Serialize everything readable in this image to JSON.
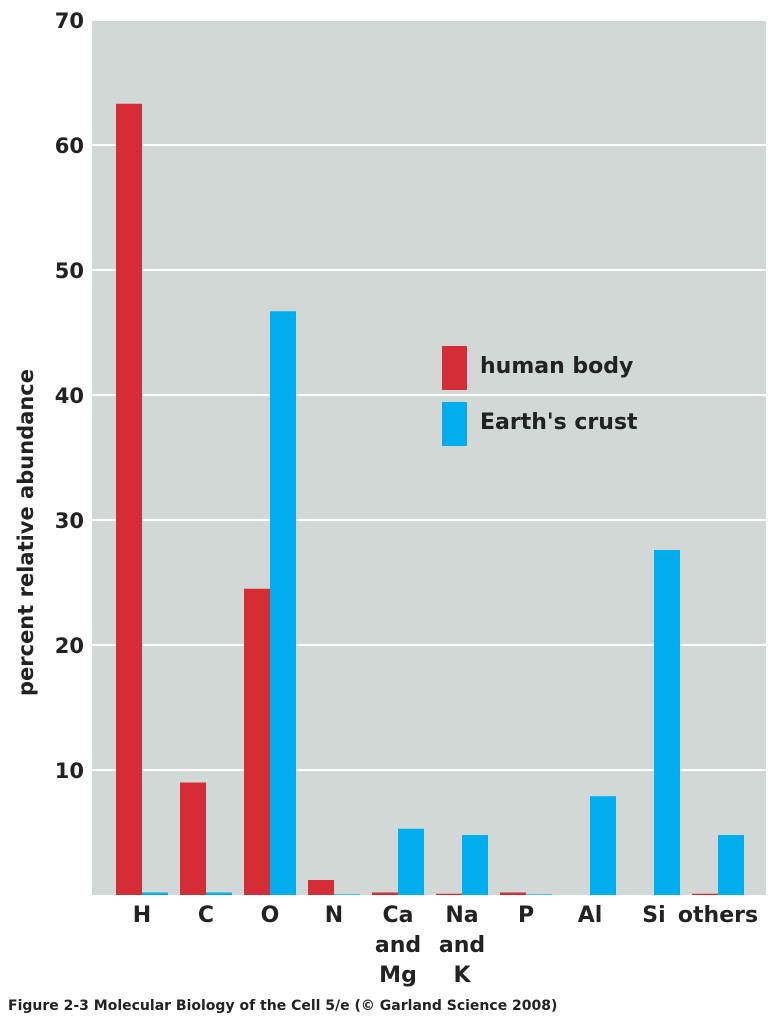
{
  "chart_data": {
    "type": "bar",
    "categories": [
      [
        "H"
      ],
      [
        "C"
      ],
      [
        "O"
      ],
      [
        "N"
      ],
      [
        "Ca",
        "and",
        "Mg"
      ],
      [
        "Na",
        "and",
        "K"
      ],
      [
        "P"
      ],
      [
        "Al"
      ],
      [
        "Si"
      ],
      [
        "others"
      ]
    ],
    "series": [
      {
        "name": "human body",
        "color": "#d42d35",
        "values": [
          63.3,
          9.0,
          24.5,
          1.2,
          0.2,
          0.1,
          0.2,
          0,
          0,
          0.1
        ]
      },
      {
        "name": "Earth's crust",
        "color": "#00aeef",
        "values": [
          0.2,
          0.2,
          46.7,
          0.05,
          5.3,
          4.8,
          0.05,
          7.9,
          27.6,
          4.8
        ]
      }
    ],
    "ylabel": "percent relative abundance",
    "yticks": [
      10,
      20,
      30,
      40,
      50,
      60,
      70
    ],
    "ylim": [
      0,
      70
    ],
    "grid": true,
    "plot_background": "#d1d8d5",
    "gridline_color": "#ffffff",
    "legend_position": "upper-middle"
  },
  "caption": "Figure 2-3  Molecular Biology of the Cell 5/e (© Garland Science 2008)"
}
